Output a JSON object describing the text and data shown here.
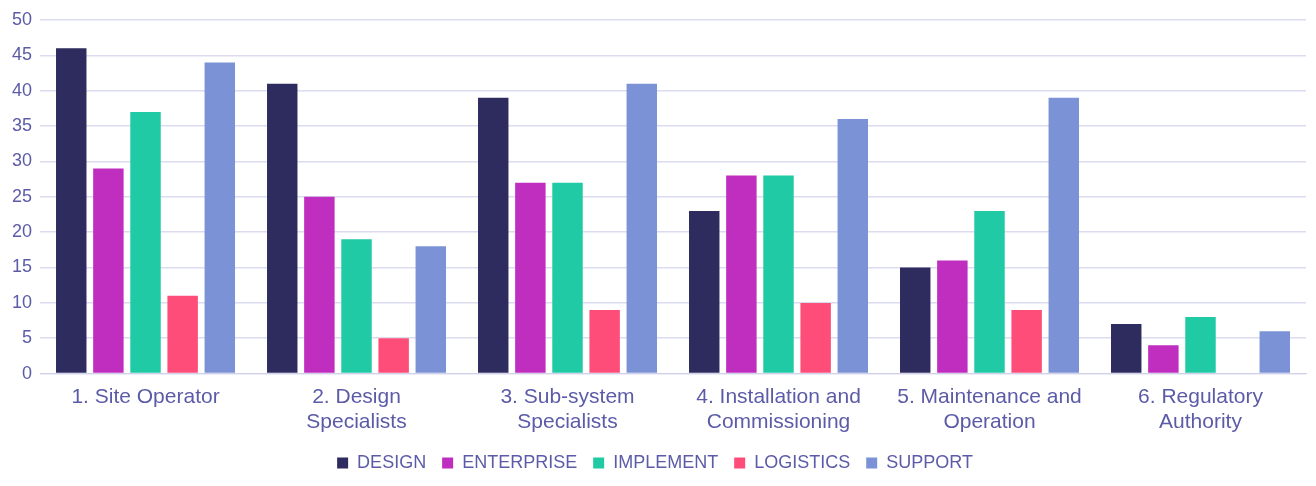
{
  "chart_data": {
    "type": "bar",
    "categories": [
      "1. Site Operator",
      "2. Design Specialists",
      "3. Sub-system Specialists",
      "4. Installation and Commissioning",
      "5. Maintenance and Operation",
      "6. Regulatory Authority"
    ],
    "series": [
      {
        "name": "DESIGN",
        "color": "#2e2b5e",
        "values": [
          46,
          41,
          39,
          23,
          15,
          7
        ]
      },
      {
        "name": "ENTERPRISE",
        "color": "#c02ec0",
        "values": [
          29,
          25,
          27,
          28,
          16,
          4
        ]
      },
      {
        "name": "IMPLEMENT",
        "color": "#1fcaa4",
        "values": [
          37,
          19,
          27,
          28,
          23,
          8
        ]
      },
      {
        "name": "LOGISTICS",
        "color": "#ff4d79",
        "values": [
          11,
          5,
          9,
          10,
          9,
          null
        ]
      },
      {
        "name": "SUPPORT",
        "color": "#7b93d6",
        "values": [
          44,
          18,
          41,
          36,
          39,
          6
        ]
      }
    ],
    "ylim": [
      0,
      50
    ],
    "yticks": [
      0,
      5,
      10,
      15,
      20,
      25,
      30,
      35,
      40,
      45,
      50
    ],
    "grid": "y",
    "legend": "bottom"
  }
}
